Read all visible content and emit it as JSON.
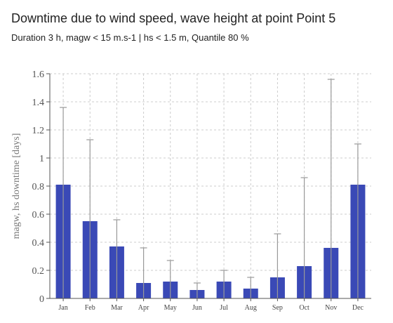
{
  "chart_data": {
    "type": "bar",
    "title": "Downtime due to wind speed, wave height at point Point 5",
    "subtitle": "Duration 3 h, magw < 15 m.s-1 | hs < 1.5 m, Quantile 80 %",
    "xlabel": "",
    "ylabel": "magw, hs downtime [days]",
    "ylim": [
      0,
      1.6
    ],
    "yticks": [
      0,
      0.2,
      0.4,
      0.6,
      0.8,
      1,
      1.2,
      1.4,
      1.6
    ],
    "ytick_labels": [
      "0",
      "0.2",
      "0.4",
      "0.6",
      "0.8",
      "1",
      "1.2",
      "1.4",
      "1.6"
    ],
    "categories": [
      "Jan",
      "Feb",
      "Mar",
      "Apr",
      "May",
      "Jun",
      "Jul",
      "Aug",
      "Sep",
      "Oct",
      "Nov",
      "Dec"
    ],
    "values": [
      0.81,
      0.55,
      0.37,
      0.11,
      0.12,
      0.06,
      0.12,
      0.07,
      0.15,
      0.23,
      0.36,
      0.81
    ],
    "error_upper": [
      1.36,
      1.13,
      0.56,
      0.36,
      0.27,
      0.11,
      0.2,
      0.15,
      0.46,
      0.86,
      1.56,
      1.1
    ],
    "grid": true,
    "bar_color": "#3a49b6",
    "error_color": "#999999"
  }
}
